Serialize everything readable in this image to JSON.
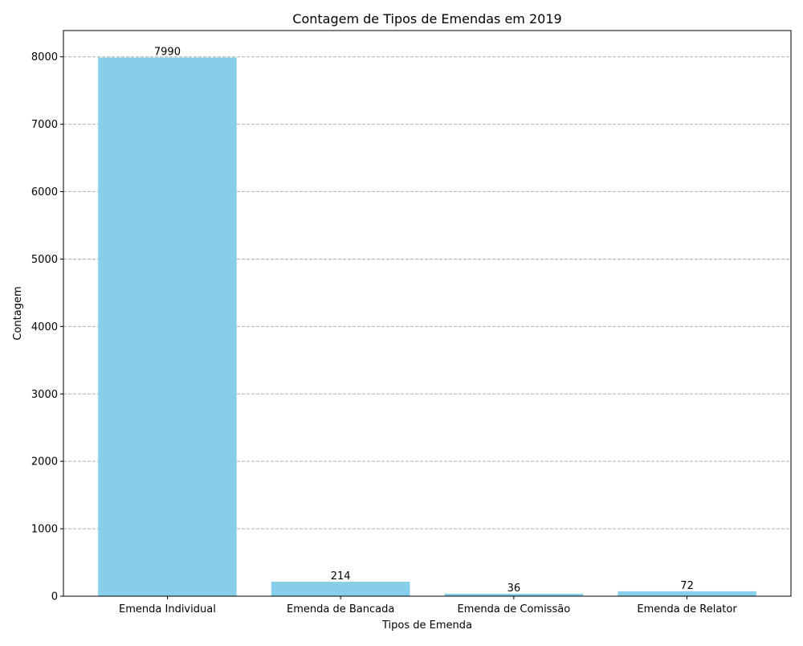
{
  "chart_data": {
    "type": "bar",
    "title": "Contagem de Tipos de Emendas em 2019",
    "xlabel": "Tipos de Emenda",
    "ylabel": "Contagem",
    "categories": [
      "Emenda Individual",
      "Emenda de Bancada",
      "Emenda de Comissão",
      "Emenda de Relator"
    ],
    "values": [
      7990,
      214,
      36,
      72
    ],
    "data_labels": [
      "7990",
      "214",
      "36",
      "72"
    ],
    "ylim": [
      0,
      8390
    ],
    "yticks": [
      0,
      1000,
      2000,
      3000,
      4000,
      5000,
      6000,
      7000,
      8000
    ],
    "ytick_labels": [
      "0",
      "1000",
      "2000",
      "3000",
      "4000",
      "5000",
      "6000",
      "7000",
      "8000"
    ],
    "grid": "y",
    "grid_style": "dashed",
    "bar_color": "#87CEEB",
    "legend": "none"
  }
}
